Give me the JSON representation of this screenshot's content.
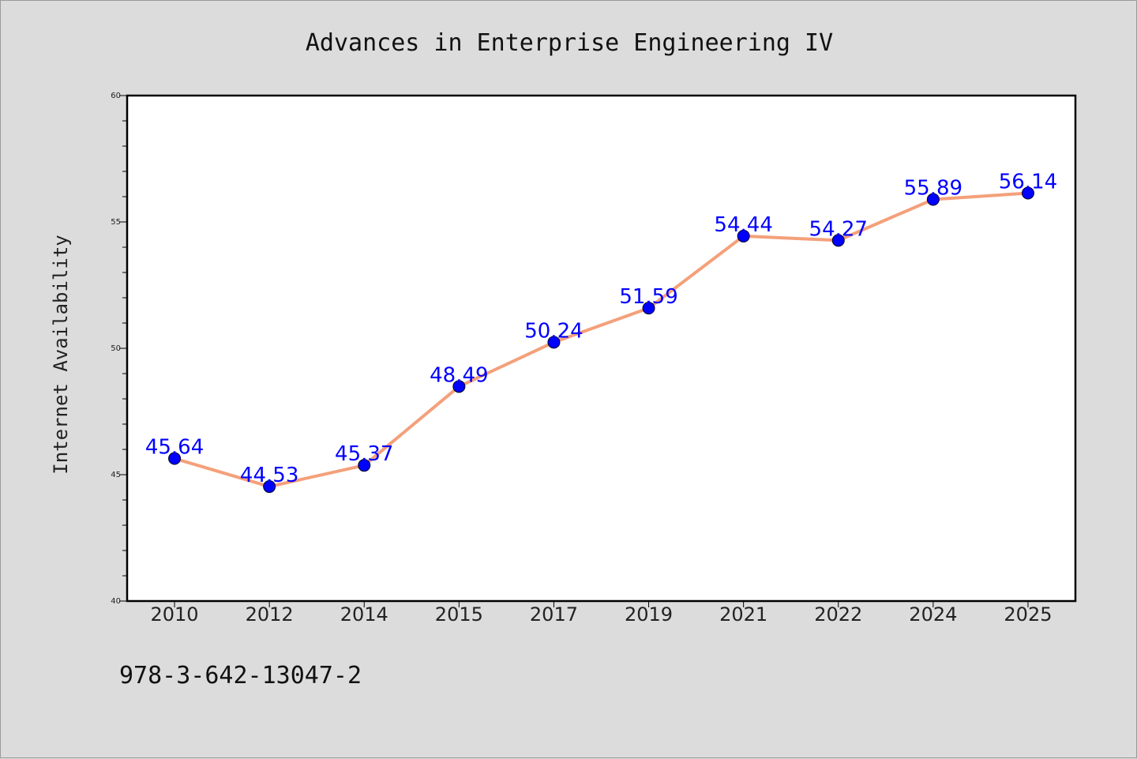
{
  "chart_data": {
    "type": "line",
    "title": "Advances in Enterprise Engineering IV",
    "xlabel": "",
    "ylabel": "Internet Availability",
    "categories": [
      "2010",
      "2012",
      "2014",
      "2015",
      "2017",
      "2019",
      "2021",
      "2022",
      "2024",
      "2025"
    ],
    "values": [
      45.64,
      44.53,
      45.37,
      48.49,
      50.24,
      51.59,
      54.44,
      54.27,
      55.89,
      56.14
    ],
    "data_labels": [
      "45.64",
      "44.53",
      "45.37",
      "48.49",
      "50.24",
      "51.59",
      "54.44",
      "54.27",
      "55.89",
      "56.14"
    ],
    "ylim": [
      40,
      60
    ],
    "yticks": [
      "40",
      "45",
      "50",
      "55",
      "60"
    ],
    "grid": false,
    "legend": "none",
    "line_color": "#f4a07a",
    "marker_color": "#0000ff",
    "label_color": "#0000ff"
  },
  "footer": {
    "isbn": "978-3-642-13047-2"
  }
}
